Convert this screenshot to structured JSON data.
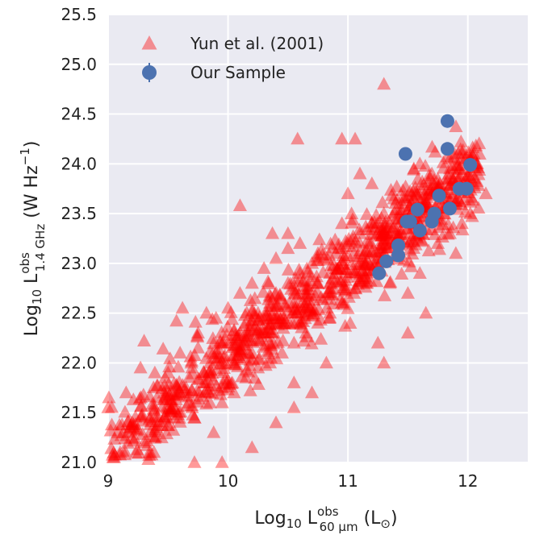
{
  "chart_data": {
    "type": "scatter",
    "xlabel": "Log10 L^obs_60μm (L⊙)",
    "ylabel": "Log10 L^obs_1.4GHz (W Hz^-1)",
    "xlim": [
      9,
      12.5
    ],
    "ylim": [
      21.0,
      25.5
    ],
    "x_ticks": [
      9,
      10,
      11,
      12
    ],
    "y_ticks": [
      21.0,
      21.5,
      22.0,
      22.5,
      23.0,
      23.5,
      24.0,
      24.5,
      25.0,
      25.5
    ],
    "grid": true,
    "legend_position": "top-left",
    "series": [
      {
        "name": "Yun et al. (2001)",
        "marker": "triangle",
        "color": "#ff0000",
        "opacity": 0.4,
        "points": [
          [
            11.3,
            24.8
          ],
          [
            10.58,
            24.25
          ],
          [
            11.06,
            24.25
          ],
          [
            10.95,
            24.25
          ],
          [
            10.1,
            23.58
          ],
          [
            12.05,
            24.1
          ],
          [
            11.55,
            23.95
          ],
          [
            12.15,
            23.7
          ],
          [
            11.9,
            23.9
          ],
          [
            11.65,
            23.6
          ],
          [
            12.02,
            23.5
          ],
          [
            11.9,
            23.1
          ],
          [
            11.75,
            23.2
          ],
          [
            11.6,
            22.9
          ],
          [
            11.65,
            22.5
          ],
          [
            9.0,
            21.55
          ],
          [
            9.15,
            21.7
          ],
          [
            9.27,
            21.95
          ],
          [
            9.3,
            22.22
          ],
          [
            9.57,
            22.42
          ],
          [
            9.62,
            22.55
          ],
          [
            9.82,
            22.5
          ],
          [
            9.95,
            21.6
          ],
          [
            9.88,
            21.3
          ],
          [
            10.2,
            21.15
          ],
          [
            10.4,
            21.4
          ],
          [
            10.55,
            21.8
          ],
          [
            10.7,
            21.7
          ],
          [
            10.82,
            22.0
          ],
          [
            10.37,
            23.3
          ],
          [
            10.5,
            23.3
          ],
          [
            11.0,
            23.7
          ],
          [
            11.1,
            23.9
          ],
          [
            11.2,
            23.8
          ],
          [
            11.4,
            23.2
          ],
          [
            11.35,
            22.8
          ],
          [
            11.5,
            22.7
          ],
          [
            9.72,
            21.0
          ],
          [
            9.95,
            21.0
          ],
          [
            10.55,
            21.55
          ],
          [
            11.25,
            22.2
          ],
          [
            11.5,
            22.3
          ],
          [
            11.3,
            22.0
          ],
          [
            11.45,
            23.6
          ],
          [
            11.55,
            23.4
          ],
          [
            11.7,
            23.7
          ],
          [
            11.8,
            23.5
          ],
          [
            11.85,
            23.3
          ],
          [
            11.95,
            23.4
          ],
          [
            12.05,
            23.8
          ],
          [
            11.6,
            24.0
          ],
          [
            11.85,
            24.05
          ],
          [
            11.7,
            23.9
          ],
          [
            10.95,
            23.4
          ],
          [
            10.75,
            23.1
          ],
          [
            9.3,
            21.2
          ],
          [
            9.45,
            21.55
          ],
          [
            9.6,
            21.7
          ],
          [
            9.5,
            21.9
          ],
          [
            9.75,
            22.15
          ],
          [
            9.35,
            21.45
          ],
          [
            9.2,
            21.25
          ],
          [
            9.1,
            21.1
          ],
          [
            9.05,
            21.05
          ],
          [
            9.2,
            21.4
          ],
          [
            9.4,
            21.35
          ],
          [
            9.55,
            21.45
          ],
          [
            9.65,
            21.75
          ],
          [
            9.7,
            21.95
          ],
          [
            9.8,
            21.8
          ],
          [
            9.85,
            22.0
          ],
          [
            9.9,
            22.1
          ],
          [
            10.0,
            22.2
          ],
          [
            10.05,
            22.0
          ],
          [
            10.1,
            22.3
          ],
          [
            10.15,
            22.4
          ],
          [
            10.2,
            22.1
          ],
          [
            10.25,
            22.5
          ],
          [
            10.3,
            22.3
          ],
          [
            10.35,
            22.6
          ],
          [
            10.4,
            22.7
          ],
          [
            10.45,
            22.4
          ],
          [
            10.5,
            22.8
          ],
          [
            10.55,
            22.6
          ],
          [
            10.6,
            22.9
          ],
          [
            10.65,
            22.7
          ],
          [
            10.7,
            23.0
          ],
          [
            10.75,
            22.8
          ],
          [
            10.8,
            23.05
          ],
          [
            10.85,
            22.9
          ],
          [
            10.9,
            23.1
          ],
          [
            10.95,
            23.0
          ],
          [
            11.0,
            23.2
          ],
          [
            11.05,
            23.1
          ],
          [
            11.1,
            23.3
          ],
          [
            11.15,
            23.0
          ],
          [
            11.2,
            23.4
          ],
          [
            11.25,
            23.3
          ],
          [
            11.3,
            23.5
          ],
          [
            11.35,
            23.4
          ],
          [
            9.6,
            22.1
          ],
          [
            9.75,
            22.3
          ],
          [
            9.9,
            22.45
          ],
          [
            10.0,
            22.55
          ],
          [
            10.1,
            22.7
          ],
          [
            10.2,
            22.8
          ],
          [
            10.3,
            22.95
          ],
          [
            10.4,
            23.05
          ],
          [
            10.5,
            23.15
          ],
          [
            10.6,
            23.2
          ],
          [
            9.7,
            21.55
          ],
          [
            9.85,
            21.6
          ],
          [
            9.95,
            21.75
          ],
          [
            10.05,
            21.7
          ],
          [
            10.15,
            21.85
          ],
          [
            10.25,
            21.95
          ],
          [
            10.35,
            22.0
          ],
          [
            10.45,
            22.1
          ],
          [
            10.55,
            22.2
          ],
          [
            10.65,
            22.3
          ],
          [
            10.75,
            22.4
          ],
          [
            10.85,
            22.5
          ],
          [
            10.95,
            22.6
          ],
          [
            11.05,
            22.7
          ],
          [
            11.15,
            22.8
          ]
        ]
      },
      {
        "name": "Our Sample",
        "marker": "circle",
        "color": "#4c72b0",
        "points": [
          [
            11.83,
            24.43
          ],
          [
            11.48,
            24.1
          ],
          [
            11.83,
            24.15
          ],
          [
            12.02,
            23.99
          ],
          [
            11.93,
            23.75
          ],
          [
            11.99,
            23.75
          ],
          [
            11.76,
            23.68
          ],
          [
            11.85,
            23.55
          ],
          [
            11.58,
            23.54
          ],
          [
            11.49,
            23.42
          ],
          [
            11.52,
            23.42
          ],
          [
            11.72,
            23.5
          ],
          [
            11.7,
            23.42
          ],
          [
            11.6,
            23.33
          ],
          [
            11.42,
            23.18
          ],
          [
            11.42,
            23.08
          ],
          [
            11.32,
            23.02
          ],
          [
            11.26,
            22.9
          ]
        ]
      }
    ]
  },
  "legend": {
    "items": [
      {
        "label": "Yun et al. (2001)"
      },
      {
        "label": "Our Sample"
      }
    ]
  },
  "axes": {
    "x_label_main": "Log",
    "x_label_sub10": "10",
    "x_label_L": " L",
    "x_label_sup": "obs",
    "x_label_sub": "60 μm",
    "x_label_unit": " (L",
    "x_label_unit_sub": "⊙",
    "x_label_close": ")",
    "y_label_main": "Log",
    "y_label_sub10": "10",
    "y_label_L": " L",
    "y_label_sup": "obs",
    "y_label_sub": "1.4 GHz",
    "y_label_unit": " (W Hz",
    "y_label_unit_sup": "−1",
    "y_label_close": ")"
  }
}
